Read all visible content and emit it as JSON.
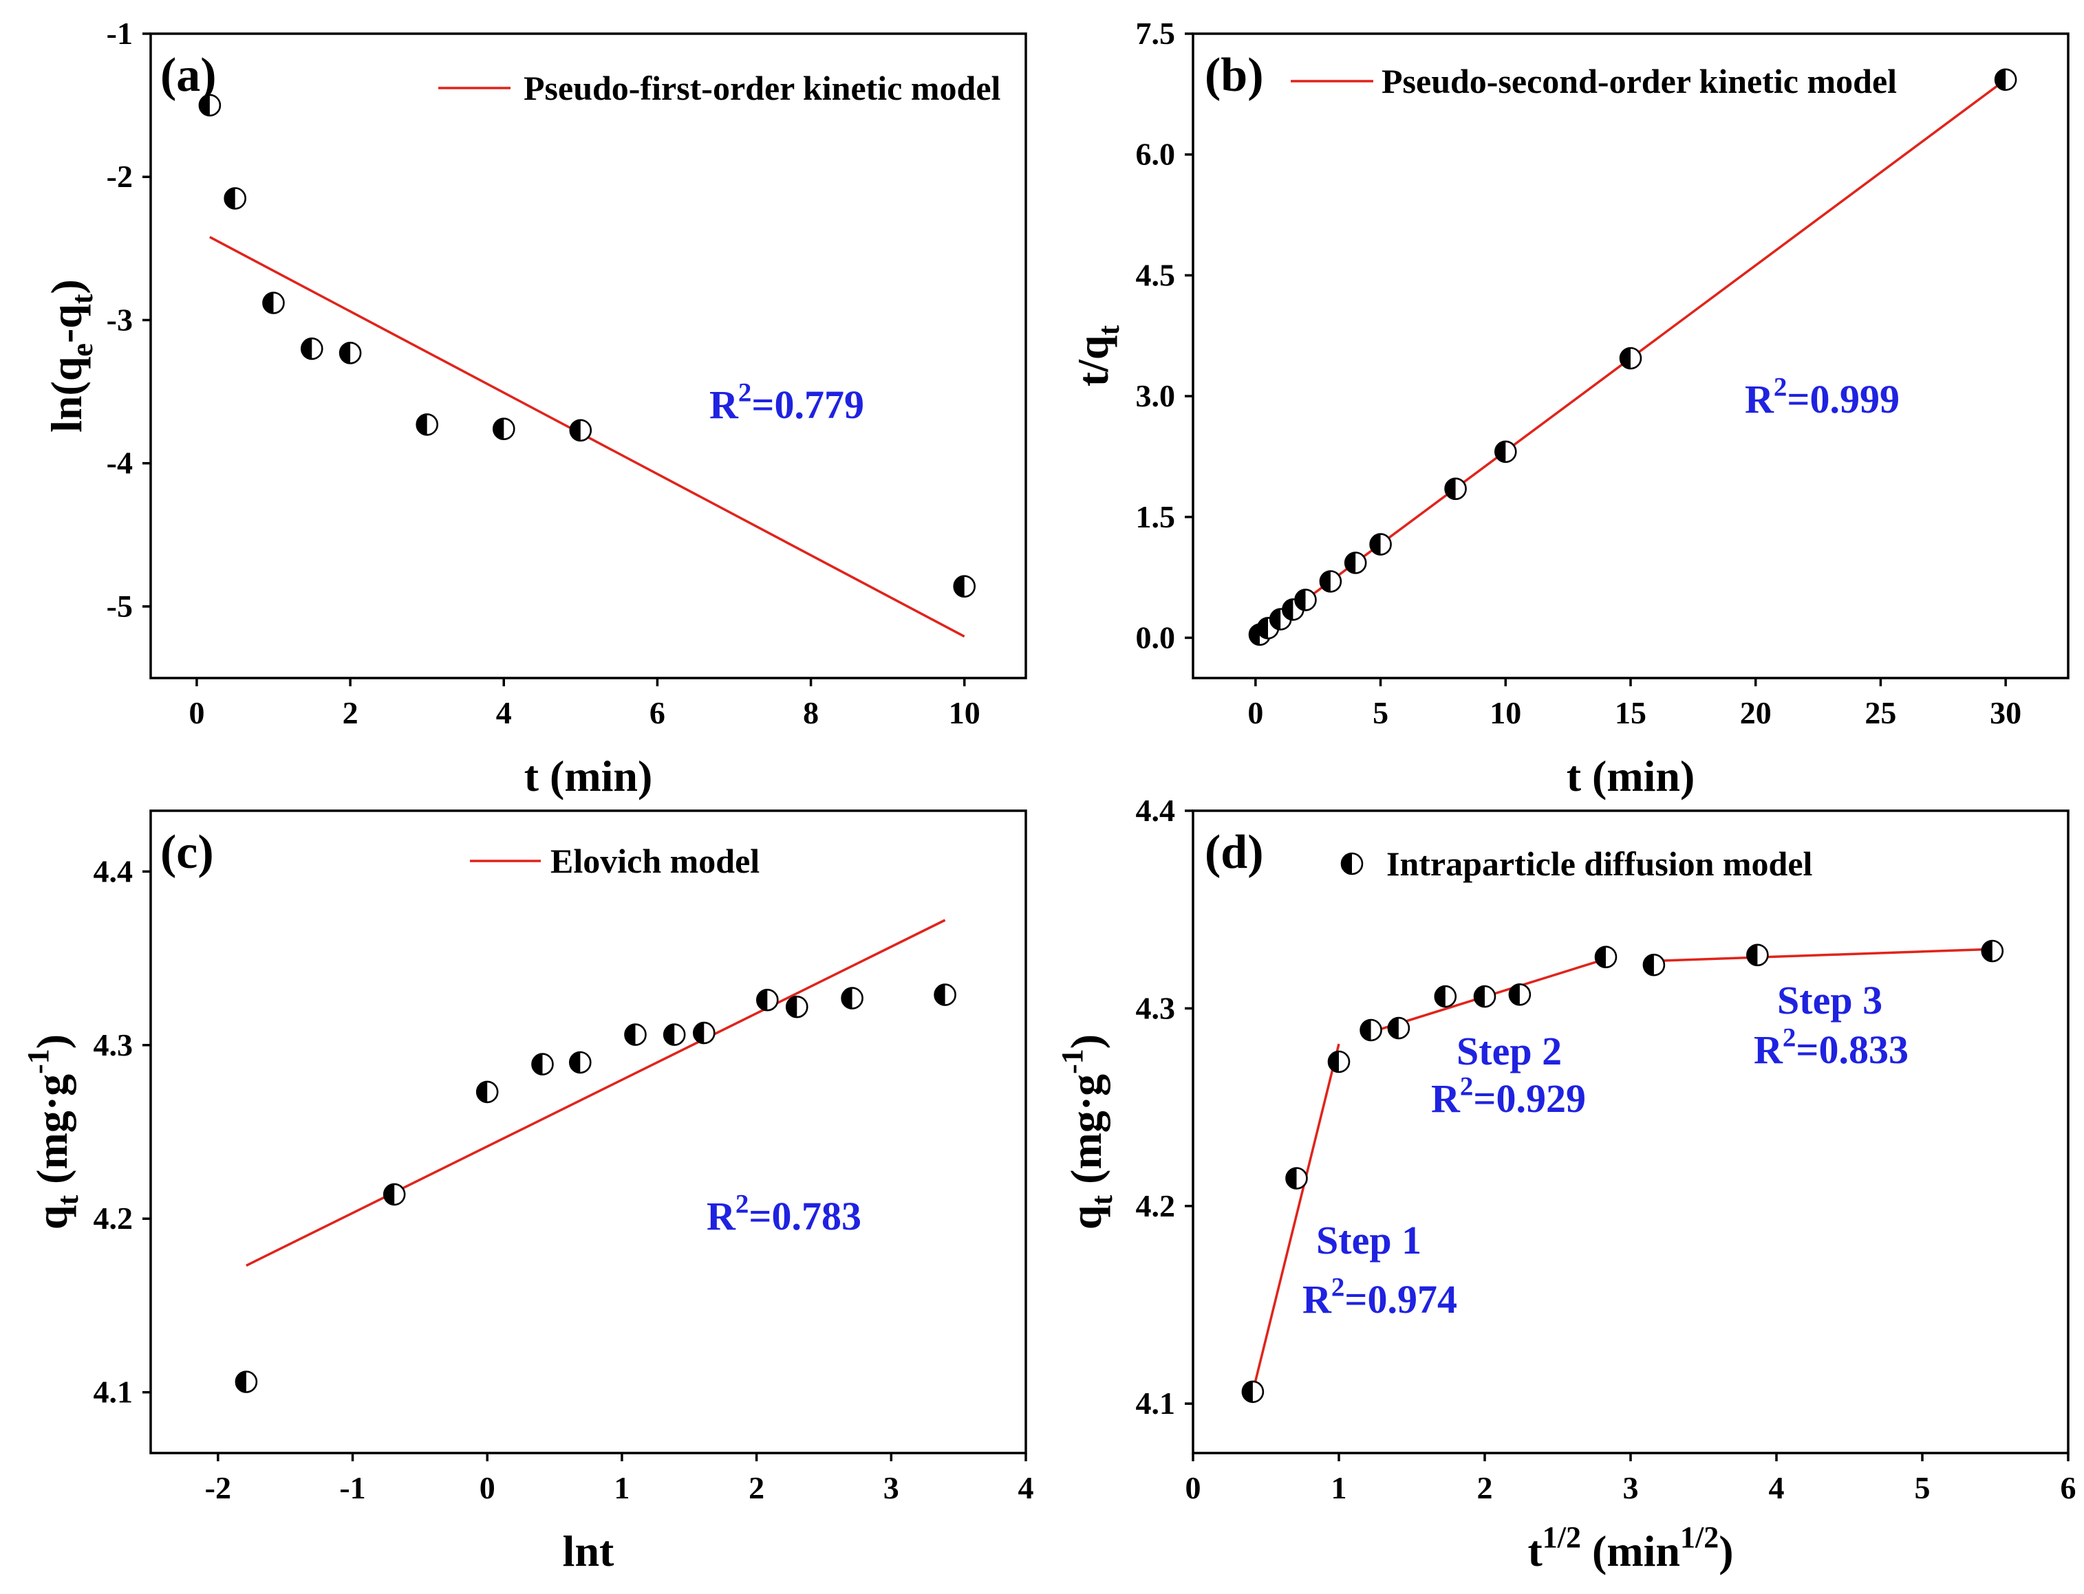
{
  "colors": {
    "fit_line": "#e0241b",
    "annotation": "#1f22e0",
    "marker": "#000000",
    "axis": "#000000",
    "background": "#ffffff"
  },
  "chart_data": [
    {
      "panel_label": "(a)",
      "type": "scatter",
      "xlabel": [
        {
          "t": "t (min)"
        }
      ],
      "ylabel": [
        {
          "t": "ln(q"
        },
        {
          "t": "e",
          "sub": true
        },
        {
          "t": "-q"
        },
        {
          "t": "t",
          "sub": true
        },
        {
          "t": ")"
        }
      ],
      "xlim": [
        -0.6,
        10.8
      ],
      "ylim": [
        -5.5,
        -1
      ],
      "xticks": [
        "0",
        "2",
        "4",
        "6",
        "8",
        "10"
      ],
      "yticks": [
        "-1",
        "-2",
        "-3",
        "-4",
        "-5"
      ],
      "series": [
        {
          "marker": "half-filled-circle",
          "x": [
            0.17,
            0.5,
            1,
            1.5,
            2,
            3,
            4,
            5,
            10
          ],
          "y": [
            -1.5,
            -2.15,
            -2.88,
            -3.2,
            -3.23,
            -3.73,
            -3.76,
            -3.77,
            -4.86
          ]
        }
      ],
      "fits": [
        {
          "x": [
            0.17,
            10
          ],
          "y": [
            -2.42,
            -5.21
          ]
        }
      ],
      "legend": {
        "label": "Pseudo-first-order kinetic model",
        "symbol": "line",
        "position": "top-right"
      },
      "annotations": [
        {
          "parts": [
            {
              "t": "R"
            },
            {
              "t": "2",
              "sup": true
            },
            {
              "t": "=0.779"
            }
          ]
        }
      ]
    },
    {
      "panel_label": "(b)",
      "type": "scatter",
      "xlabel": [
        {
          "t": "t (min)"
        }
      ],
      "ylabel": [
        {
          "t": "t/q"
        },
        {
          "t": "t",
          "sub": true
        }
      ],
      "xlim": [
        -2.5,
        32.5
      ],
      "ylim": [
        -0.5,
        7.5
      ],
      "xticks": [
        "0",
        "5",
        "10",
        "15",
        "20",
        "25",
        "30"
      ],
      "yticks": [
        "7.5",
        "6.0",
        "4.5",
        "3.0",
        "1.5",
        "0.0"
      ],
      "series": [
        {
          "marker": "half-filled-circle",
          "x": [
            0.17,
            0.5,
            1,
            1.5,
            2,
            3,
            4,
            5,
            8,
            10,
            15,
            30
          ],
          "y": [
            0.04,
            0.12,
            0.23,
            0.35,
            0.47,
            0.7,
            0.93,
            1.16,
            1.85,
            2.31,
            3.47,
            6.93
          ]
        }
      ],
      "fits": [
        {
          "x": [
            0.17,
            30
          ],
          "y": [
            0.05,
            6.93
          ]
        }
      ],
      "legend": {
        "label": "Pseudo-second-order kinetic model",
        "symbol": "line",
        "position": "top-right"
      },
      "annotations": [
        {
          "parts": [
            {
              "t": "R"
            },
            {
              "t": "2",
              "sup": true
            },
            {
              "t": "=0.999"
            }
          ]
        }
      ]
    },
    {
      "panel_label": "(c)",
      "type": "scatter",
      "xlabel": [
        {
          "t": "lnt"
        }
      ],
      "ylabel": [
        {
          "t": "q"
        },
        {
          "t": "t",
          "sub": true
        },
        {
          "t": " (mg·g"
        },
        {
          "t": "-1",
          "sup": true
        },
        {
          "t": ")"
        }
      ],
      "xlim": [
        -2.5,
        4
      ],
      "ylim": [
        4.065,
        4.435
      ],
      "xticks": [
        "-2",
        "-1",
        "0",
        "1",
        "2",
        "3",
        "4"
      ],
      "yticks": [
        "4.4",
        "4.3",
        "4.2",
        "4.1"
      ],
      "series": [
        {
          "marker": "half-filled-circle",
          "x": [
            -1.79,
            -0.69,
            0,
            0.41,
            0.69,
            1.1,
            1.39,
            1.61,
            2.08,
            2.3,
            2.71,
            3.4
          ],
          "y": [
            4.106,
            4.214,
            4.273,
            4.289,
            4.29,
            4.306,
            4.306,
            4.307,
            4.326,
            4.322,
            4.327,
            4.329
          ]
        }
      ],
      "fits": [
        {
          "x": [
            -1.79,
            3.4
          ],
          "y": [
            4.173,
            4.372
          ]
        }
      ],
      "legend": {
        "label": "Elovich model",
        "symbol": "line",
        "position": "top-center"
      },
      "annotations": [
        {
          "parts": [
            {
              "t": "R"
            },
            {
              "t": "2",
              "sup": true
            },
            {
              "t": "=0.783"
            }
          ]
        }
      ]
    },
    {
      "panel_label": "(d)",
      "type": "scatter",
      "xlabel": [
        {
          "t": "t"
        },
        {
          "t": "1/2",
          "sup": true
        },
        {
          "t": " (min"
        },
        {
          "t": "1/2",
          "sup": true
        },
        {
          "t": ")"
        }
      ],
      "ylabel": [
        {
          "t": "q"
        },
        {
          "t": "t",
          "sub": true
        },
        {
          "t": " (mg·g"
        },
        {
          "t": "-1",
          "sup": true
        },
        {
          "t": ")"
        }
      ],
      "xlim": [
        0,
        6
      ],
      "ylim": [
        4.075,
        4.4
      ],
      "xticks": [
        "0",
        "1",
        "2",
        "3",
        "4",
        "5",
        "6"
      ],
      "yticks": [
        "4.4",
        "4.3",
        "4.2",
        "4.1"
      ],
      "series": [
        {
          "marker": "half-filled-circle",
          "x": [
            0.41,
            0.71,
            1.0,
            1.22,
            1.41,
            1.73,
            2.0,
            2.24,
            2.83,
            3.16,
            3.87,
            5.48
          ],
          "y": [
            4.106,
            4.214,
            4.273,
            4.289,
            4.29,
            4.306,
            4.306,
            4.307,
            4.326,
            4.322,
            4.327,
            4.329
          ]
        }
      ],
      "fits": [
        {
          "x": [
            0.41,
            1.0
          ],
          "y": [
            4.106,
            4.282
          ]
        },
        {
          "x": [
            1.22,
            2.83
          ],
          "y": [
            4.288,
            4.325
          ]
        },
        {
          "x": [
            3.16,
            5.48
          ],
          "y": [
            4.324,
            4.33
          ]
        }
      ],
      "legend": {
        "label": "Intraparticle diffusion model",
        "symbol": "marker",
        "position": "top-center"
      },
      "annotations": [
        {
          "parts": [
            {
              "t": "Step 1"
            }
          ]
        },
        {
          "parts": [
            {
              "t": "R"
            },
            {
              "t": "2",
              "sup": true
            },
            {
              "t": "=0.974"
            }
          ]
        },
        {
          "parts": [
            {
              "t": "Step 2"
            }
          ]
        },
        {
          "parts": [
            {
              "t": "R"
            },
            {
              "t": "2",
              "sup": true
            },
            {
              "t": "=0.929"
            }
          ]
        },
        {
          "parts": [
            {
              "t": "Step 3"
            }
          ]
        },
        {
          "parts": [
            {
              "t": "R"
            },
            {
              "t": "2",
              "sup": true
            },
            {
              "t": "=0.833"
            }
          ]
        }
      ]
    }
  ]
}
